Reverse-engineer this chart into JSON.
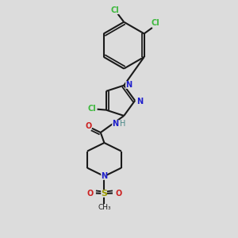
{
  "background_color": "#dcdcdc",
  "bond_color": "#1a1a1a",
  "cl_color": "#3db83d",
  "n_color": "#2020cc",
  "o_color": "#cc2020",
  "nh_color": "#4a8888",
  "line_width": 1.5,
  "figsize": [
    3.0,
    3.0
  ],
  "dpi": 100,
  "xlim": [
    0.1,
    0.9
  ],
  "ylim": [
    0.02,
    0.98
  ]
}
